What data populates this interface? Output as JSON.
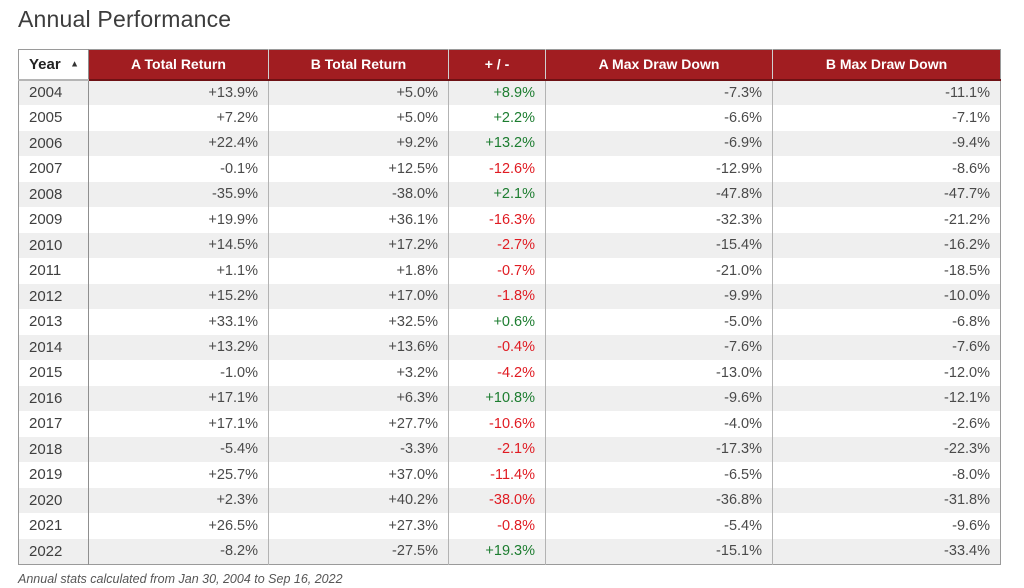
{
  "page": {
    "title": "Annual Performance",
    "footnote": "Annual stats calculated from Jan 30, 2004 to Sep 16, 2022"
  },
  "sort": {
    "column": "Year",
    "direction": "ascending",
    "indicator": "▲"
  },
  "colors": {
    "header_bg": "#A11D21",
    "header_underline": "#6E1114",
    "row_stripe": "#EFEFEF",
    "positive_text": "#1D7D30",
    "negative_text": "#E01B22"
  },
  "chart_data": {
    "type": "table",
    "title": "Annual Performance",
    "columns": [
      "Year",
      "A Total Return",
      "B Total Return",
      "+ / -",
      "A Max Draw Down",
      "B Max Draw Down"
    ],
    "rows": [
      [
        "2004",
        "+13.9%",
        "+5.0%",
        "+8.9%",
        "-7.3%",
        "-11.1%"
      ],
      [
        "2005",
        "+7.2%",
        "+5.0%",
        "+2.2%",
        "-6.6%",
        "-7.1%"
      ],
      [
        "2006",
        "+22.4%",
        "+9.2%",
        "+13.2%",
        "-6.9%",
        "-9.4%"
      ],
      [
        "2007",
        "-0.1%",
        "+12.5%",
        "-12.6%",
        "-12.9%",
        "-8.6%"
      ],
      [
        "2008",
        "-35.9%",
        "-38.0%",
        "+2.1%",
        "-47.8%",
        "-47.7%"
      ],
      [
        "2009",
        "+19.9%",
        "+36.1%",
        "-16.3%",
        "-32.3%",
        "-21.2%"
      ],
      [
        "2010",
        "+14.5%",
        "+17.2%",
        "-2.7%",
        "-15.4%",
        "-16.2%"
      ],
      [
        "2011",
        "+1.1%",
        "+1.8%",
        "-0.7%",
        "-21.0%",
        "-18.5%"
      ],
      [
        "2012",
        "+15.2%",
        "+17.0%",
        "-1.8%",
        "-9.9%",
        "-10.0%"
      ],
      [
        "2013",
        "+33.1%",
        "+32.5%",
        "+0.6%",
        "-5.0%",
        "-6.8%"
      ],
      [
        "2014",
        "+13.2%",
        "+13.6%",
        "-0.4%",
        "-7.6%",
        "-7.6%"
      ],
      [
        "2015",
        "-1.0%",
        "+3.2%",
        "-4.2%",
        "-13.0%",
        "-12.0%"
      ],
      [
        "2016",
        "+17.1%",
        "+6.3%",
        "+10.8%",
        "-9.6%",
        "-12.1%"
      ],
      [
        "2017",
        "+17.1%",
        "+27.7%",
        "-10.6%",
        "-4.0%",
        "-2.6%"
      ],
      [
        "2018",
        "-5.4%",
        "-3.3%",
        "-2.1%",
        "-17.3%",
        "-22.3%"
      ],
      [
        "2019",
        "+25.7%",
        "+37.0%",
        "-11.4%",
        "-6.5%",
        "-8.0%"
      ],
      [
        "2020",
        "+2.3%",
        "+40.2%",
        "-38.0%",
        "-36.8%",
        "-31.8%"
      ],
      [
        "2021",
        "+26.5%",
        "+27.3%",
        "-0.8%",
        "-5.4%",
        "-9.6%"
      ],
      [
        "2022",
        "-8.2%",
        "-27.5%",
        "+19.3%",
        "-15.1%",
        "-33.4%"
      ]
    ],
    "layout": {
      "striped": true,
      "header_style": "dark-red",
      "sorted_by": "Year ascending"
    }
  }
}
